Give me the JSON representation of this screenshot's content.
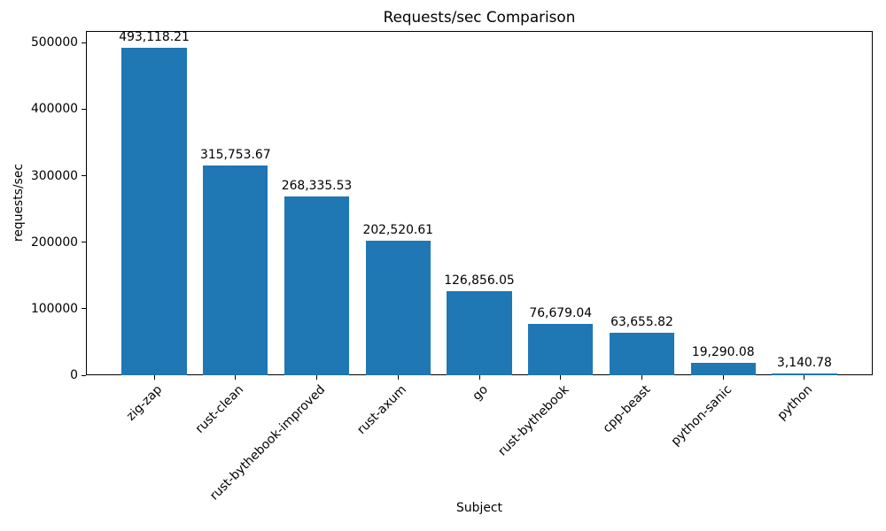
{
  "chart_data": {
    "type": "bar",
    "title": "Requests/sec Comparison",
    "xlabel": "Subject",
    "ylabel": "requests/sec",
    "categories": [
      "zig-zap",
      "rust-clean",
      "rust-bythebook-improved",
      "rust-axum",
      "go",
      "rust-bythebook",
      "cpp-beast",
      "python-sanic",
      "python"
    ],
    "values": [
      493118.21,
      315753.67,
      268335.53,
      202520.61,
      126856.05,
      76679.04,
      63655.82,
      19290.08,
      3140.78
    ],
    "bar_labels": [
      "493,118.21",
      "315,753.67",
      "268,335.53",
      "202,520.61",
      "126,856.05",
      "76,679.04",
      "63,655.82",
      "19,290.08",
      "3,140.78"
    ],
    "ylim": [
      0,
      517774
    ],
    "yticks": [
      0,
      100000,
      200000,
      300000,
      400000,
      500000
    ],
    "ytick_labels": [
      "0",
      "100000",
      "200000",
      "300000",
      "400000",
      "500000"
    ],
    "xtick_rotation_deg": 45,
    "bar_width_fraction": 0.8,
    "bar_color": "#1f77b4",
    "text_color": "#000000",
    "spine_color": "#000000",
    "grid": false,
    "legend": null
  }
}
